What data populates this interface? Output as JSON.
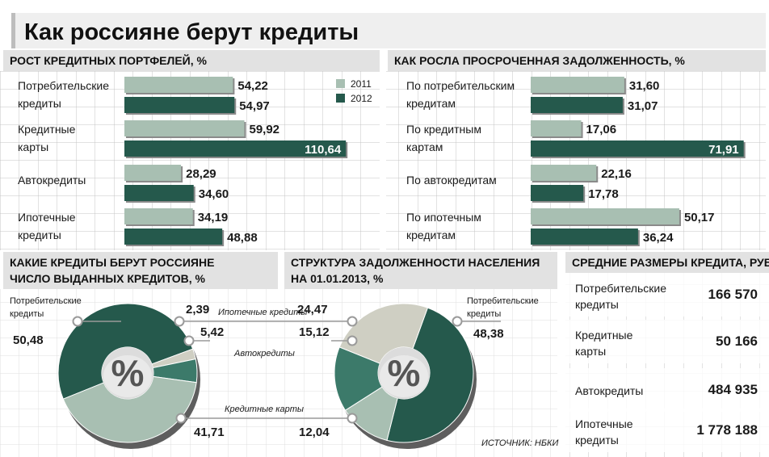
{
  "title": "Как россияне берут кредиты",
  "source": "ИСТОЧНИК: НБКИ",
  "colors": {
    "light": "#a8bfb2",
    "dark": "#25594c",
    "header_bg": "#e2e2e2",
    "grid": "#bdbdbd",
    "text": "#1a1a1a"
  },
  "legend": {
    "y2011": "2011",
    "y2012": "2012"
  },
  "chart_data": [
    {
      "type": "bar",
      "title": "РОСТ КРЕДИТНЫХ ПОРТФЕЛЕЙ, %",
      "categories": [
        [
          "Потребительские",
          "кредиты"
        ],
        [
          "Кредитные",
          "карты"
        ],
        [
          "Автокредиты"
        ],
        [
          "Ипотечные",
          "кредиты"
        ]
      ],
      "series": [
        {
          "name": "2011",
          "values": [
            54.22,
            59.92,
            28.29,
            34.19
          ]
        },
        {
          "name": "2012",
          "values": [
            54.97,
            110.64,
            34.6,
            48.88
          ]
        }
      ],
      "labels": [
        [
          "54,22",
          "54,97"
        ],
        [
          "59,92",
          "110,64"
        ],
        [
          "28,29",
          "34,60"
        ],
        [
          "34,19",
          "48,88"
        ]
      ],
      "xlim": [
        0,
        115
      ]
    },
    {
      "type": "bar",
      "title": "КАК РОСЛА ПРОСРОЧЕННАЯ ЗАДОЛЖЕННОСТЬ, %",
      "categories": [
        [
          "По потребительским",
          "кредитам"
        ],
        [
          "По кредитным",
          "картам"
        ],
        [
          "По автокредитам"
        ],
        [
          "По ипотечным",
          "кредитам"
        ]
      ],
      "series": [
        {
          "name": "2011",
          "values": [
            31.6,
            17.06,
            22.16,
            50.17
          ]
        },
        {
          "name": "2012",
          "values": [
            31.07,
            71.91,
            17.78,
            36.24
          ]
        }
      ],
      "labels": [
        [
          "31,60",
          "31,07"
        ],
        [
          "17,06",
          "71,91"
        ],
        [
          "22,16",
          "17,78"
        ],
        [
          "50,17",
          "36,24"
        ]
      ],
      "xlim": [
        0,
        75
      ]
    },
    {
      "type": "pie",
      "title": [
        "КАКИЕ КРЕДИТЫ БЕРУТ РОССИЯНЕ",
        "ЧИСЛО ВЫДАННЫХ КРЕДИТОВ, %"
      ],
      "center_label": "%",
      "slices": [
        {
          "name": "Потребительские кредиты",
          "value": 50.48,
          "label": "50,48"
        },
        {
          "name": "Ипотечные кредиты",
          "value": 2.39,
          "label": "2,39"
        },
        {
          "name": "Автокредиты",
          "value": 5.42,
          "label": "5,42"
        },
        {
          "name": "Кредитные карты",
          "value": 41.71,
          "label": "41,71"
        }
      ]
    },
    {
      "type": "pie",
      "title": [
        "СТРУКТУРА ЗАДОЛЖЕННОСТИ НАСЕЛЕНИЯ",
        "НА 01.01.2013, %"
      ],
      "center_label": "%",
      "slices": [
        {
          "name": "Потребительские кредиты",
          "value": 48.38,
          "label": "48,38"
        },
        {
          "name": "Кредитные карты",
          "value": 12.04,
          "label": "12,04"
        },
        {
          "name": "Автокредиты",
          "value": 15.12,
          "label": "15,12"
        },
        {
          "name": "Ипотечные кредиты",
          "value": 24.47,
          "label": "24,47"
        }
      ]
    },
    {
      "type": "table",
      "title": "СРЕДНИЕ РАЗМЕРЫ КРЕДИТА, РУБ.",
      "rows": [
        {
          "name": [
            "Потребительские",
            "кредиты"
          ],
          "value": "166 570"
        },
        {
          "name": [
            "Кредитные",
            "карты"
          ],
          "value": "50 166"
        },
        {
          "name": [
            "Автокредиты"
          ],
          "value": "484 935"
        },
        {
          "name": [
            "Ипотечные",
            "кредиты"
          ],
          "value": "1 778 188"
        }
      ]
    }
  ],
  "pie_captions": {
    "left_consumer": [
      "Потребительские",
      "кредиты"
    ],
    "mortgage": "Ипотечные кредиты",
    "auto": "Автокредиты",
    "cards": "Кредитные карты",
    "right_consumer": [
      "Потребительские",
      "кредиты"
    ]
  }
}
